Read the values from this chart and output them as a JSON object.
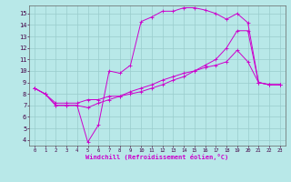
{
  "xlabel": "Windchill (Refroidissement éolien,°C)",
  "background_color": "#b8e8e8",
  "grid_color": "#99cccc",
  "line_color": "#cc00cc",
  "xlim": [
    -0.5,
    23.5
  ],
  "ylim": [
    3.5,
    15.7
  ],
  "xticks": [
    0,
    1,
    2,
    3,
    4,
    5,
    6,
    7,
    8,
    9,
    10,
    11,
    12,
    13,
    14,
    15,
    16,
    17,
    18,
    19,
    20,
    21,
    22,
    23
  ],
  "yticks": [
    4,
    5,
    6,
    7,
    8,
    9,
    10,
    11,
    12,
    13,
    14,
    15
  ],
  "series": [
    {
      "x": [
        0,
        1,
        2,
        3,
        4,
        5,
        6,
        7,
        8,
        9,
        10,
        11,
        12,
        13,
        14,
        15,
        16,
        17,
        18,
        19,
        20,
        21,
        22,
        23
      ],
      "y": [
        8.5,
        8.0,
        7.0,
        7.0,
        7.0,
        3.8,
        5.3,
        10.0,
        9.8,
        10.5,
        14.3,
        14.7,
        15.2,
        15.2,
        15.5,
        15.5,
        15.3,
        15.0,
        14.5,
        15.0,
        14.2,
        9.0,
        8.8,
        8.8
      ]
    },
    {
      "x": [
        0,
        1,
        2,
        3,
        4,
        5,
        6,
        7,
        8,
        9,
        10,
        11,
        12,
        13,
        14,
        15,
        16,
        17,
        18,
        19,
        20,
        21,
        22,
        23
      ],
      "y": [
        8.5,
        8.0,
        7.0,
        7.0,
        7.0,
        6.8,
        7.2,
        7.5,
        7.8,
        8.2,
        8.5,
        8.8,
        9.2,
        9.5,
        9.8,
        10.0,
        10.3,
        10.5,
        10.8,
        11.8,
        10.8,
        9.0,
        8.8,
        8.8
      ]
    },
    {
      "x": [
        0,
        1,
        2,
        3,
        4,
        5,
        6,
        7,
        8,
        9,
        10,
        11,
        12,
        13,
        14,
        15,
        16,
        17,
        18,
        19,
        20,
        21,
        22,
        23
      ],
      "y": [
        8.5,
        8.0,
        7.2,
        7.2,
        7.2,
        7.5,
        7.5,
        7.8,
        7.8,
        8.0,
        8.2,
        8.5,
        8.8,
        9.2,
        9.5,
        10.0,
        10.5,
        11.0,
        12.0,
        13.5,
        13.5,
        9.0,
        8.8,
        8.8
      ]
    }
  ]
}
